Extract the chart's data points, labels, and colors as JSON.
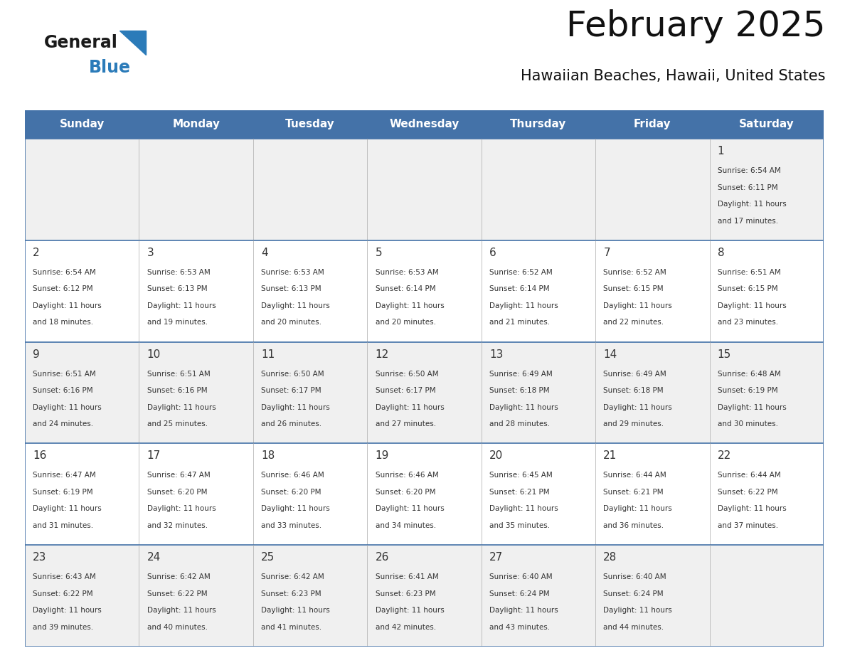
{
  "title": "February 2025",
  "subtitle": "Hawaiian Beaches, Hawaii, United States",
  "days_of_week": [
    "Sunday",
    "Monday",
    "Tuesday",
    "Wednesday",
    "Thursday",
    "Friday",
    "Saturday"
  ],
  "header_bg": "#4472A8",
  "header_text": "#FFFFFF",
  "cell_bg_odd": "#F0F0F0",
  "cell_bg_even": "#FFFFFF",
  "grid_line_color": "#4472A8",
  "day_number_color": "#333333",
  "info_text_color": "#333333",
  "title_color": "#111111",
  "subtitle_color": "#111111",
  "logo_general_color": "#1a1a1a",
  "logo_blue_color": "#2B7BB9",
  "calendar_data": {
    "1": {
      "sunrise": "6:54 AM",
      "sunset": "6:11 PM",
      "daylight_hours": 11,
      "daylight_minutes": 17
    },
    "2": {
      "sunrise": "6:54 AM",
      "sunset": "6:12 PM",
      "daylight_hours": 11,
      "daylight_minutes": 18
    },
    "3": {
      "sunrise": "6:53 AM",
      "sunset": "6:13 PM",
      "daylight_hours": 11,
      "daylight_minutes": 19
    },
    "4": {
      "sunrise": "6:53 AM",
      "sunset": "6:13 PM",
      "daylight_hours": 11,
      "daylight_minutes": 20
    },
    "5": {
      "sunrise": "6:53 AM",
      "sunset": "6:14 PM",
      "daylight_hours": 11,
      "daylight_minutes": 20
    },
    "6": {
      "sunrise": "6:52 AM",
      "sunset": "6:14 PM",
      "daylight_hours": 11,
      "daylight_minutes": 21
    },
    "7": {
      "sunrise": "6:52 AM",
      "sunset": "6:15 PM",
      "daylight_hours": 11,
      "daylight_minutes": 22
    },
    "8": {
      "sunrise": "6:51 AM",
      "sunset": "6:15 PM",
      "daylight_hours": 11,
      "daylight_minutes": 23
    },
    "9": {
      "sunrise": "6:51 AM",
      "sunset": "6:16 PM",
      "daylight_hours": 11,
      "daylight_minutes": 24
    },
    "10": {
      "sunrise": "6:51 AM",
      "sunset": "6:16 PM",
      "daylight_hours": 11,
      "daylight_minutes": 25
    },
    "11": {
      "sunrise": "6:50 AM",
      "sunset": "6:17 PM",
      "daylight_hours": 11,
      "daylight_minutes": 26
    },
    "12": {
      "sunrise": "6:50 AM",
      "sunset": "6:17 PM",
      "daylight_hours": 11,
      "daylight_minutes": 27
    },
    "13": {
      "sunrise": "6:49 AM",
      "sunset": "6:18 PM",
      "daylight_hours": 11,
      "daylight_minutes": 28
    },
    "14": {
      "sunrise": "6:49 AM",
      "sunset": "6:18 PM",
      "daylight_hours": 11,
      "daylight_minutes": 29
    },
    "15": {
      "sunrise": "6:48 AM",
      "sunset": "6:19 PM",
      "daylight_hours": 11,
      "daylight_minutes": 30
    },
    "16": {
      "sunrise": "6:47 AM",
      "sunset": "6:19 PM",
      "daylight_hours": 11,
      "daylight_minutes": 31
    },
    "17": {
      "sunrise": "6:47 AM",
      "sunset": "6:20 PM",
      "daylight_hours": 11,
      "daylight_minutes": 32
    },
    "18": {
      "sunrise": "6:46 AM",
      "sunset": "6:20 PM",
      "daylight_hours": 11,
      "daylight_minutes": 33
    },
    "19": {
      "sunrise": "6:46 AM",
      "sunset": "6:20 PM",
      "daylight_hours": 11,
      "daylight_minutes": 34
    },
    "20": {
      "sunrise": "6:45 AM",
      "sunset": "6:21 PM",
      "daylight_hours": 11,
      "daylight_minutes": 35
    },
    "21": {
      "sunrise": "6:44 AM",
      "sunset": "6:21 PM",
      "daylight_hours": 11,
      "daylight_minutes": 36
    },
    "22": {
      "sunrise": "6:44 AM",
      "sunset": "6:22 PM",
      "daylight_hours": 11,
      "daylight_minutes": 37
    },
    "23": {
      "sunrise": "6:43 AM",
      "sunset": "6:22 PM",
      "daylight_hours": 11,
      "daylight_minutes": 39
    },
    "24": {
      "sunrise": "6:42 AM",
      "sunset": "6:22 PM",
      "daylight_hours": 11,
      "daylight_minutes": 40
    },
    "25": {
      "sunrise": "6:42 AM",
      "sunset": "6:23 PM",
      "daylight_hours": 11,
      "daylight_minutes": 41
    },
    "26": {
      "sunrise": "6:41 AM",
      "sunset": "6:23 PM",
      "daylight_hours": 11,
      "daylight_minutes": 42
    },
    "27": {
      "sunrise": "6:40 AM",
      "sunset": "6:24 PM",
      "daylight_hours": 11,
      "daylight_minutes": 43
    },
    "28": {
      "sunrise": "6:40 AM",
      "sunset": "6:24 PM",
      "daylight_hours": 11,
      "daylight_minutes": 44
    }
  },
  "week_layout": [
    [
      null,
      null,
      null,
      null,
      null,
      null,
      1
    ],
    [
      2,
      3,
      4,
      5,
      6,
      7,
      8
    ],
    [
      9,
      10,
      11,
      12,
      13,
      14,
      15
    ],
    [
      16,
      17,
      18,
      19,
      20,
      21,
      22
    ],
    [
      23,
      24,
      25,
      26,
      27,
      28,
      null
    ]
  ]
}
